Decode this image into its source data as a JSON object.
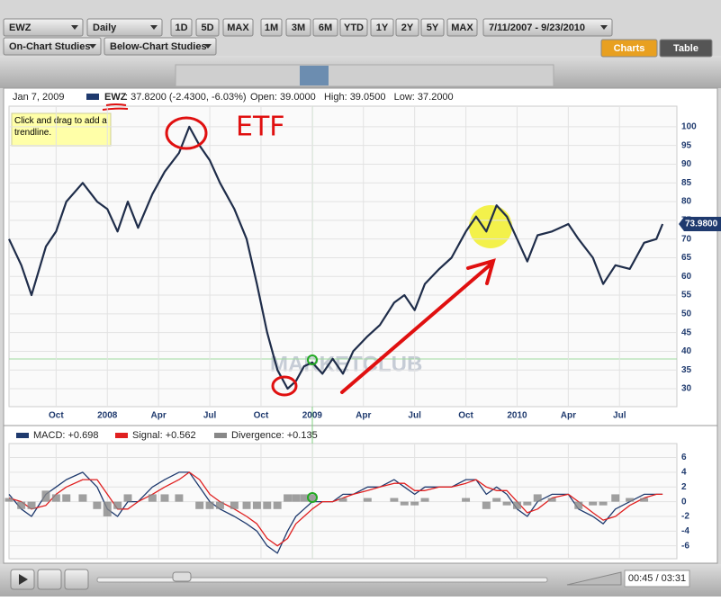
{
  "toolbar": {
    "symbol": "EWZ",
    "interval": "Daily",
    "ranges_a": [
      "1D",
      "5D",
      "MAX"
    ],
    "ranges_b": [
      "1M",
      "3M",
      "6M",
      "YTD",
      "1Y",
      "2Y",
      "5Y",
      "MAX"
    ],
    "date_range": "7/11/2007 - 9/23/2010",
    "studies": [
      "On-Chart Studies",
      "Below-Chart Studies"
    ],
    "tabs": [
      "Charts",
      "Table"
    ]
  },
  "info": {
    "date": "Jan 7, 2009",
    "symbol": "EWZ",
    "quote": ": 37.8200 (-2.4300, -6.03%)",
    "ohlc": "Open: 39.0000   High: 39.0500   Low: 37.2000"
  },
  "tooltip": "Click and drag to add a trendline.",
  "watermark": "MARKETCLUB",
  "annotation": "ETF",
  "player_time": "00:45 / 03:31",
  "chart_data": [
    {
      "type": "line",
      "last_value_label": "73.9800",
      "grid": true,
      "x": [
        2007.52,
        2007.58,
        2007.63,
        2007.7,
        2007.75,
        2007.8,
        2007.88,
        2007.95,
        2008.0,
        2008.05,
        2008.1,
        2008.15,
        2008.22,
        2008.28,
        2008.35,
        2008.4,
        2008.45,
        2008.5,
        2008.55,
        2008.62,
        2008.68,
        2008.73,
        2008.78,
        2008.83,
        2008.88,
        2008.92,
        2008.96,
        2009.0,
        2009.05,
        2009.1,
        2009.15,
        2009.2,
        2009.27,
        2009.33,
        2009.4,
        2009.45,
        2009.5,
        2009.55,
        2009.62,
        2009.68,
        2009.75,
        2009.8,
        2009.85,
        2009.9,
        2009.95,
        2010.0,
        2010.05,
        2010.1,
        2010.17,
        2010.25,
        2010.3,
        2010.37,
        2010.42,
        2010.48,
        2010.55,
        2010.62,
        2010.68,
        2010.71
      ],
      "series": [
        {
          "name": "EWZ",
          "color": "#1f2d4a",
          "values": [
            70,
            63,
            55,
            68,
            72,
            80,
            85,
            80,
            78,
            72,
            80,
            73,
            82,
            88,
            93,
            100,
            95,
            91,
            85,
            78,
            70,
            58,
            45,
            35,
            30,
            32,
            36,
            37,
            34,
            38,
            34,
            40,
            44,
            47,
            53,
            55,
            51,
            58,
            62,
            65,
            72,
            76,
            72,
            79,
            76,
            70,
            64,
            71,
            72,
            74,
            70,
            65,
            58,
            63,
            62,
            69,
            70,
            74
          ]
        }
      ],
      "xlim": [
        2007.52,
        2010.78
      ],
      "xticks": [
        {
          "value": 2007.75,
          "label": "Oct"
        },
        2008,
        {
          "value": 2008.25,
          "label": "Apr"
        },
        {
          "value": 2008.5,
          "label": "Jul"
        },
        {
          "value": 2008.75,
          "label": "Oct"
        },
        2009,
        {
          "value": 2009.25,
          "label": "Apr"
        },
        {
          "value": 2009.5,
          "label": "Jul"
        },
        {
          "value": 2009.75,
          "label": "Oct"
        },
        2010,
        {
          "value": 2010.25,
          "label": "Apr"
        },
        {
          "value": 2010.5,
          "label": "Jul"
        }
      ],
      "ylim": [
        25.2,
        105.5
      ],
      "yticks": [
        30,
        35,
        40,
        45,
        50,
        55,
        60,
        65,
        70,
        75,
        80,
        85,
        90,
        95,
        100
      ]
    },
    {
      "type": "line",
      "grid": true,
      "x": [
        2007.52,
        2007.58,
        2007.63,
        2007.7,
        2007.75,
        2007.8,
        2007.88,
        2007.95,
        2008.0,
        2008.05,
        2008.1,
        2008.15,
        2008.22,
        2008.28,
        2008.35,
        2008.4,
        2008.45,
        2008.5,
        2008.55,
        2008.62,
        2008.68,
        2008.73,
        2008.78,
        2008.83,
        2008.88,
        2008.92,
        2008.96,
        2009.0,
        2009.05,
        2009.1,
        2009.15,
        2009.2,
        2009.27,
        2009.33,
        2009.4,
        2009.45,
        2009.5,
        2009.55,
        2009.62,
        2009.68,
        2009.75,
        2009.8,
        2009.85,
        2009.9,
        2009.95,
        2010.0,
        2010.05,
        2010.1,
        2010.17,
        2010.25,
        2010.3,
        2010.37,
        2010.42,
        2010.48,
        2010.55,
        2010.62,
        2010.68,
        2010.71
      ],
      "series": [
        {
          "name": "MACD: +0.698",
          "color": "#1f3a6e",
          "values": [
            1,
            -1,
            -2,
            1,
            2,
            3,
            4,
            2,
            -1,
            -2,
            0,
            0,
            2,
            3,
            4,
            4,
            2,
            0,
            -1,
            -2,
            -3,
            -4,
            -6,
            -7,
            -4,
            -2,
            -1,
            0,
            0,
            0,
            1,
            1,
            2,
            2,
            3,
            2,
            1,
            2,
            2,
            2,
            3,
            3,
            1,
            2,
            1,
            -1,
            -2,
            0,
            1,
            1,
            -1,
            -2,
            -3,
            -1,
            0,
            1,
            1,
            1
          ]
        },
        {
          "name": "Signal: +0.562",
          "color": "#e02020",
          "values": [
            0.5,
            0,
            -1,
            -0.5,
            1,
            2,
            3,
            3,
            1,
            -1,
            -1,
            0,
            1,
            2,
            3,
            4,
            3,
            1,
            0,
            -1,
            -2,
            -3,
            -5,
            -6,
            -5,
            -3,
            -2,
            -1,
            0,
            0,
            0.5,
            1,
            1.5,
            2,
            2.5,
            2.5,
            1.5,
            1.5,
            2,
            2,
            2.5,
            3,
            2,
            1.5,
            1.5,
            0,
            -1.5,
            -1,
            0.5,
            1,
            0,
            -1.5,
            -2.5,
            -2,
            -0.5,
            0.5,
            1,
            1
          ]
        },
        {
          "name": "Divergence: +0.135",
          "color": "#888888",
          "type": "bar",
          "values": [
            0.5,
            -1,
            -1,
            1.5,
            1,
            1,
            1,
            -1,
            -2,
            -1,
            1,
            0,
            1,
            1,
            1,
            0,
            -1,
            -1,
            -1,
            -1,
            -1,
            -1,
            -1,
            -1,
            1,
            1,
            1,
            1,
            0,
            0,
            0.5,
            0,
            0.5,
            0,
            0.5,
            -0.5,
            -0.5,
            0.5,
            0,
            0,
            0.5,
            0,
            -1,
            0.5,
            -0.5,
            -1,
            -0.5,
            1,
            0.5,
            0,
            -1,
            -0.5,
            -0.5,
            1,
            0.5,
            0.5,
            0,
            0
          ]
        }
      ],
      "xlim": [
        2007.52,
        2010.78
      ],
      "xticks": [
        2007.75,
        2008,
        2008.25,
        2008.5,
        2008.75,
        2009,
        2009.25,
        2009.5,
        2009.75,
        2010,
        2010.25,
        2010.5
      ],
      "ylim": [
        -7.75,
        7.9
      ],
      "yticks": [
        -6,
        -4,
        -2,
        0,
        2,
        4,
        6
      ]
    }
  ]
}
